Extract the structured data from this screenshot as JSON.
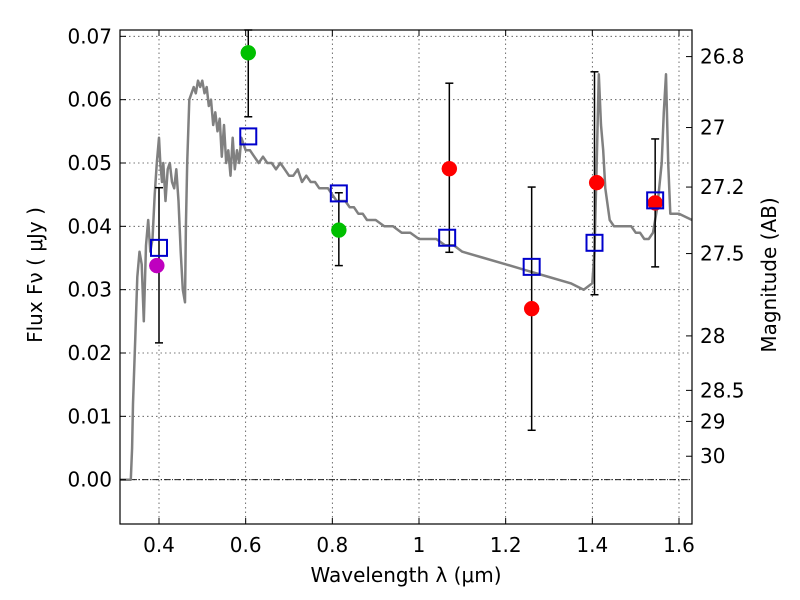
{
  "chart_data": {
    "type": "scatter",
    "xlabel": "Wavelength  λ (μm)",
    "ylabel": "Flux  Fν  ( μJy )",
    "ylabel_right": "Magnitude (AB)",
    "xlim": [
      0.31,
      1.63
    ],
    "ylim": [
      -0.007,
      0.071
    ],
    "x_ticks": [
      0.4,
      0.6,
      0.8,
      1.0,
      1.2,
      1.4,
      1.6
    ],
    "x_tick_labels": [
      "0.4",
      "0.6",
      "0.8",
      "1",
      "1.2",
      "1.4",
      "1.6"
    ],
    "y_ticks": [
      0.0,
      0.01,
      0.02,
      0.03,
      0.04,
      0.05,
      0.06,
      0.07
    ],
    "y_tick_labels": [
      "0.00",
      "0.01",
      "0.02",
      "0.03",
      "0.04",
      "0.05",
      "0.06",
      "0.07"
    ],
    "right_ticks": [
      {
        "label": "26.8",
        "flux": 0.0668
      },
      {
        "label": "27",
        "flux": 0.0556
      },
      {
        "label": "27.2",
        "flux": 0.0462
      },
      {
        "label": "27.5",
        "flux": 0.0357
      },
      {
        "label": "28",
        "flux": 0.0227
      },
      {
        "label": "28.5",
        "flux": 0.0141
      },
      {
        "label": "29",
        "flux": 0.0092
      },
      {
        "label": "30",
        "flux": 0.0037
      }
    ],
    "grid": true,
    "zero_line": 0.0,
    "colors": {
      "model": "#808080",
      "magenta": "#bf00bf",
      "green": "#00c000",
      "red": "#ff0000",
      "box": "#0000cc",
      "errorbar": "#000000"
    },
    "model_spectrum": {
      "x": [
        0.31,
        0.335,
        0.338,
        0.34,
        0.345,
        0.35,
        0.355,
        0.36,
        0.365,
        0.37,
        0.375,
        0.38,
        0.385,
        0.39,
        0.395,
        0.4,
        0.403,
        0.407,
        0.41,
        0.415,
        0.42,
        0.425,
        0.43,
        0.435,
        0.44,
        0.445,
        0.45,
        0.455,
        0.46,
        0.462,
        0.465,
        0.47,
        0.48,
        0.485,
        0.49,
        0.495,
        0.5,
        0.505,
        0.51,
        0.515,
        0.52,
        0.525,
        0.53,
        0.535,
        0.54,
        0.545,
        0.55,
        0.555,
        0.56,
        0.565,
        0.57,
        0.575,
        0.58,
        0.585,
        0.59,
        0.6,
        0.61,
        0.62,
        0.63,
        0.64,
        0.65,
        0.66,
        0.67,
        0.68,
        0.69,
        0.7,
        0.71,
        0.72,
        0.73,
        0.74,
        0.75,
        0.76,
        0.77,
        0.78,
        0.79,
        0.8,
        0.81,
        0.82,
        0.83,
        0.84,
        0.85,
        0.86,
        0.87,
        0.88,
        0.9,
        0.92,
        0.94,
        0.96,
        0.98,
        1.0,
        1.02,
        1.04,
        1.06,
        1.08,
        1.1,
        1.15,
        1.2,
        1.25,
        1.3,
        1.35,
        1.38,
        1.4,
        1.405,
        1.41,
        1.415,
        1.42,
        1.425,
        1.43,
        1.44,
        1.45,
        1.46,
        1.47,
        1.48,
        1.49,
        1.5,
        1.51,
        1.52,
        1.53,
        1.54,
        1.55,
        1.56,
        1.565,
        1.57,
        1.575,
        1.58,
        1.59,
        1.6,
        1.63
      ],
      "y": [
        0.0,
        0.0,
        0.005,
        0.012,
        0.022,
        0.032,
        0.036,
        0.034,
        0.025,
        0.037,
        0.041,
        0.036,
        0.038,
        0.045,
        0.05,
        0.054,
        0.05,
        0.047,
        0.05,
        0.044,
        0.049,
        0.05,
        0.047,
        0.046,
        0.049,
        0.044,
        0.036,
        0.03,
        0.028,
        0.04,
        0.05,
        0.06,
        0.062,
        0.061,
        0.063,
        0.062,
        0.063,
        0.061,
        0.062,
        0.059,
        0.06,
        0.056,
        0.058,
        0.055,
        0.057,
        0.051,
        0.056,
        0.05,
        0.052,
        0.048,
        0.054,
        0.049,
        0.052,
        0.05,
        0.054,
        0.052,
        0.052,
        0.051,
        0.05,
        0.051,
        0.05,
        0.05,
        0.049,
        0.05,
        0.049,
        0.048,
        0.048,
        0.049,
        0.047,
        0.048,
        0.047,
        0.047,
        0.046,
        0.046,
        0.046,
        0.045,
        0.044,
        0.044,
        0.044,
        0.043,
        0.043,
        0.042,
        0.042,
        0.041,
        0.041,
        0.04,
        0.04,
        0.039,
        0.039,
        0.038,
        0.038,
        0.038,
        0.037,
        0.037,
        0.036,
        0.035,
        0.034,
        0.033,
        0.032,
        0.031,
        0.03,
        0.031,
        0.036,
        0.05,
        0.064,
        0.056,
        0.052,
        0.046,
        0.041,
        0.04,
        0.04,
        0.04,
        0.04,
        0.04,
        0.039,
        0.039,
        0.038,
        0.038,
        0.039,
        0.043,
        0.05,
        0.058,
        0.064,
        0.05,
        0.042,
        0.042,
        0.042,
        0.041
      ]
    },
    "series": [
      {
        "marker": "circle",
        "color": "#bf00bf",
        "points": [
          {
            "x": 0.395,
            "y": 0.0338
          }
        ]
      },
      {
        "marker": "circle",
        "color": "#00c000",
        "points": [
          {
            "x": 0.606,
            "y": 0.0674
          },
          {
            "x": 0.815,
            "y": 0.0394
          }
        ]
      },
      {
        "marker": "circle",
        "color": "#ff0000",
        "points": [
          {
            "x": 1.07,
            "y": 0.0491
          },
          {
            "x": 1.26,
            "y": 0.027
          },
          {
            "x": 1.41,
            "y": 0.0469
          },
          {
            "x": 1.545,
            "y": 0.0437
          }
        ]
      },
      {
        "marker": "square-open",
        "color": "#0000cc",
        "points": [
          {
            "x": 0.4,
            "y": 0.0366
          },
          {
            "x": 0.606,
            "y": 0.0542
          },
          {
            "x": 0.815,
            "y": 0.0452
          },
          {
            "x": 1.065,
            "y": 0.0382
          },
          {
            "x": 1.26,
            "y": 0.0336
          },
          {
            "x": 1.405,
            "y": 0.0374
          },
          {
            "x": 1.545,
            "y": 0.0441
          }
        ]
      }
    ],
    "errorbars": [
      {
        "x": 0.4,
        "low": 0.0216,
        "high": 0.0461
      },
      {
        "x": 0.606,
        "low": 0.0573,
        "high": 0.071
      },
      {
        "x": 0.815,
        "low": 0.0338,
        "high": 0.0453
      },
      {
        "x": 1.07,
        "low": 0.0359,
        "high": 0.0626
      },
      {
        "x": 1.26,
        "low": 0.0078,
        "high": 0.0462
      },
      {
        "x": 1.405,
        "low": 0.0292,
        "high": 0.0644
      },
      {
        "x": 1.545,
        "low": 0.0336,
        "high": 0.0538
      }
    ]
  }
}
